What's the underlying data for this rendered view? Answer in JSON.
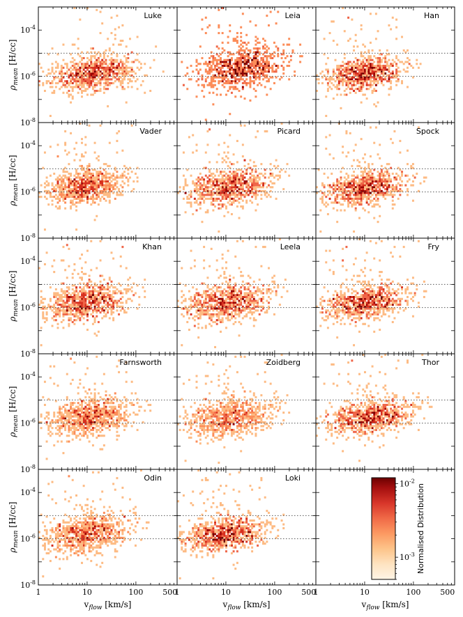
{
  "chart_data": {
    "type": "heatmap",
    "layout": {
      "rows": 5,
      "cols": 3,
      "shared_axes": true
    },
    "xlabel": "v_flow [km/s]",
    "ylabel": "ρ_mean [H/cc]",
    "xscale": "log",
    "yscale": "log",
    "xlim": [
      1,
      700
    ],
    "ylim": [
      1e-08,
      0.001
    ],
    "x_tick_labels": [
      "1",
      "10",
      "100",
      "500"
    ],
    "x_ticks": [
      1,
      10,
      100,
      500
    ],
    "y_tick_labels": [
      "10^-8",
      "10^-6",
      "10^-4"
    ],
    "y_ticks": [
      1e-08,
      1e-06,
      0.0001
    ],
    "reference_lines_y": [
      1e-05,
      1e-06
    ],
    "panels": [
      {
        "title": "Luke",
        "center_logx": 1.05,
        "center_logy": -5.9,
        "spread_x": 0.45,
        "spread_y": 0.35,
        "max_logx": 2.6
      },
      {
        "title": "Leia",
        "center_logx": 1.2,
        "center_logy": -5.65,
        "spread_x": 0.45,
        "spread_y": 0.45,
        "max_logx": 2.6
      },
      {
        "title": "Han",
        "center_logx": 0.9,
        "center_logy": -5.9,
        "spread_x": 0.4,
        "spread_y": 0.35,
        "max_logx": 2.4
      },
      {
        "title": "Vader",
        "center_logx": 0.85,
        "center_logy": -5.8,
        "spread_x": 0.4,
        "spread_y": 0.35,
        "max_logx": 2.6
      },
      {
        "title": "Picard",
        "center_logx": 0.95,
        "center_logy": -5.8,
        "spread_x": 0.45,
        "spread_y": 0.4,
        "max_logx": 2.5
      },
      {
        "title": "Spock",
        "center_logx": 0.9,
        "center_logy": -5.85,
        "spread_x": 0.45,
        "spread_y": 0.35,
        "max_logx": 2.5
      },
      {
        "title": "Khan",
        "center_logx": 0.85,
        "center_logy": -5.8,
        "spread_x": 0.45,
        "spread_y": 0.4,
        "max_logx": 2.6
      },
      {
        "title": "Leela",
        "center_logx": 0.9,
        "center_logy": -5.8,
        "spread_x": 0.45,
        "spread_y": 0.4,
        "max_logx": 2.4
      },
      {
        "title": "Fry",
        "center_logx": 0.9,
        "center_logy": -5.8,
        "spread_x": 0.45,
        "spread_y": 0.35,
        "max_logx": 2.4
      },
      {
        "title": "Farnsworth",
        "center_logx": 0.95,
        "center_logy": -5.75,
        "spread_x": 0.45,
        "spread_y": 0.4,
        "max_logx": 2.5
      },
      {
        "title": "Zoidberg",
        "center_logx": 0.95,
        "center_logy": -5.8,
        "spread_x": 0.45,
        "spread_y": 0.4,
        "max_logx": 2.5
      },
      {
        "title": "Thor",
        "center_logx": 1.0,
        "center_logy": -5.75,
        "spread_x": 0.45,
        "spread_y": 0.35,
        "max_logx": 2.7
      },
      {
        "title": "Odin",
        "center_logx": 0.9,
        "center_logy": -5.8,
        "spread_x": 0.45,
        "spread_y": 0.4,
        "max_logx": 2.5
      },
      {
        "title": "Loki",
        "center_logx": 0.85,
        "center_logy": -5.85,
        "spread_x": 0.45,
        "spread_y": 0.35,
        "max_logx": 2.4
      }
    ],
    "colorbar": {
      "label": "Normalised Distribution",
      "scale": "log",
      "range": [
        0.0005,
        0.012
      ],
      "tick_labels": [
        "10^-2",
        "10^-3"
      ],
      "ticks": [
        0.01,
        0.001
      ],
      "colors": [
        "#fff5e6",
        "#fdd49e",
        "#fdbb84",
        "#fc8d59",
        "#ef6548",
        "#d7301f",
        "#990000",
        "#6b0000"
      ]
    }
  }
}
